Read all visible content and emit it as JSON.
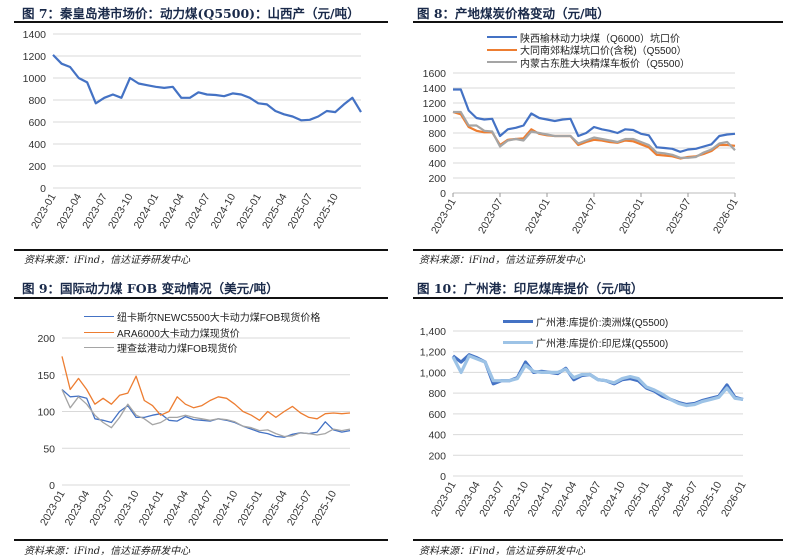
{
  "source_text": "资料来源：iFind，信达证券研发中心",
  "charts": [
    {
      "title": "图 7：秦皇岛港市场价：动力煤(Q5500)：山西产（元/吨）"
    },
    {
      "title": "图 8：产地煤炭价格变动（元/吨）"
    },
    {
      "title": "图 9：国际动力煤 FOB 变动情况（美元/吨）"
    },
    {
      "title": "图 10：广州港：印尼煤库提价（元/吨）"
    }
  ],
  "chart_data": [
    {
      "type": "line",
      "title": "图 7：秦皇岛港市场价：动力煤(Q5500)：山西产（元/吨）",
      "ylim": [
        0,
        1400
      ],
      "yticks": [
        "0",
        "200",
        "400",
        "600",
        "800",
        "1000",
        "1200",
        "1400"
      ],
      "xstart": "2023-01",
      "xticks": [
        "2023-01",
        "2023-04",
        "2023-07",
        "2023-10",
        "2024-01",
        "2024-04",
        "2024-07",
        "2024-10",
        "2025-01",
        "2025-04",
        "2025-07",
        "2025-10"
      ],
      "xtick_step_months": 3,
      "legend": "none",
      "series": [
        {
          "name": "秦皇岛港市场价：动力煤(Q5500)：山西产",
          "color": "#4472C4",
          "width": 2.2,
          "values": [
            1210,
            1130,
            1100,
            1000,
            960,
            770,
            820,
            850,
            820,
            1000,
            950,
            935,
            920,
            910,
            920,
            820,
            820,
            870,
            850,
            845,
            835,
            860,
            850,
            820,
            770,
            760,
            700,
            670,
            650,
            615,
            620,
            650,
            700,
            690,
            760,
            820,
            690
          ]
        }
      ]
    },
    {
      "type": "line",
      "title": "图 8：产地煤炭价格变动（元/吨）",
      "ylim": [
        0,
        1600
      ],
      "yticks": [
        "0",
        "200",
        "400",
        "600",
        "800",
        "1000",
        "1200",
        "1400",
        "1600"
      ],
      "xstart": "2023-01",
      "xticks": [
        "2023-01",
        "2023-07",
        "2024-01",
        "2024-07",
        "2025-01",
        "2025-07",
        "2026-01"
      ],
      "xtick_step_months": 6,
      "legend": "top",
      "series": [
        {
          "name": "陕西榆林动力块煤（Q6000）坑口价",
          "color": "#4472C4",
          "width": 2.2,
          "values": [
            1380,
            1380,
            1100,
            1000,
            980,
            990,
            760,
            850,
            870,
            900,
            1060,
            1000,
            980,
            960,
            980,
            990,
            760,
            800,
            880,
            850,
            830,
            800,
            850,
            840,
            790,
            770,
            610,
            600,
            590,
            550,
            580,
            590,
            620,
            650,
            760,
            780,
            790
          ]
        },
        {
          "name": "大同南郊粘煤坑口价(含税)（Q5500）",
          "color": "#ED7D31",
          "width": 2.2,
          "values": [
            1080,
            1050,
            880,
            830,
            810,
            810,
            640,
            710,
            720,
            730,
            850,
            790,
            770,
            760,
            760,
            760,
            640,
            680,
            710,
            700,
            680,
            670,
            700,
            690,
            650,
            610,
            510,
            500,
            490,
            460,
            480,
            490,
            520,
            560,
            640,
            640,
            630
          ]
        },
        {
          "name": "内蒙古东胜大块精煤车板价（Q5500）",
          "color": "#A5A5A5",
          "width": 2.2,
          "values": [
            1080,
            1080,
            900,
            900,
            830,
            820,
            620,
            700,
            720,
            700,
            820,
            800,
            780,
            760,
            760,
            760,
            660,
            700,
            740,
            720,
            700,
            680,
            720,
            720,
            680,
            640,
            540,
            530,
            510,
            470,
            470,
            480,
            540,
            580,
            660,
            680,
            570
          ]
        }
      ]
    },
    {
      "type": "line",
      "title": "图 9：国际动力煤 FOB 变动情况（美元/吨）",
      "ylim": [
        0,
        200
      ],
      "yticks": [
        "0",
        "50",
        "100",
        "150",
        "200"
      ],
      "xstart": "2023-01",
      "xticks": [
        "2023-01",
        "2023-04",
        "2023-07",
        "2023-10",
        "2024-01",
        "2024-04",
        "2024-07",
        "2024-10",
        "2025-01",
        "2025-04",
        "2025-07",
        "2025-10"
      ],
      "xtick_step_months": 3,
      "legend": "top",
      "series": [
        {
          "name": "纽卡斯尔NEWC5500大卡动力煤FOB现货价格",
          "color": "#4472C4",
          "width": 1.3,
          "values": [
            130,
            120,
            121,
            118,
            90,
            88,
            85,
            100,
            108,
            92,
            92,
            95,
            97,
            88,
            87,
            93,
            89,
            88,
            87,
            90,
            88,
            85,
            80,
            76,
            72,
            70,
            66,
            65,
            69,
            71,
            70,
            72,
            86,
            75,
            72,
            74
          ]
        },
        {
          "name": "ARA6000大卡动力煤现货价",
          "color": "#ED7D31",
          "width": 1.3,
          "values": [
            175,
            130,
            145,
            130,
            110,
            118,
            110,
            122,
            125,
            148,
            115,
            108,
            95,
            100,
            120,
            110,
            105,
            108,
            115,
            120,
            118,
            110,
            100,
            95,
            88,
            100,
            92,
            100,
            107,
            98,
            92,
            90,
            97,
            98,
            97,
            98
          ]
        },
        {
          "name": "理查兹港动力煤FOB现货价",
          "color": "#A5A5A5",
          "width": 1.3,
          "values": [
            130,
            105,
            120,
            110,
            95,
            85,
            78,
            92,
            110,
            95,
            90,
            82,
            85,
            92,
            92,
            95,
            92,
            90,
            88,
            90,
            89,
            86,
            80,
            78,
            74,
            75,
            70,
            66,
            67,
            71,
            70,
            68,
            70,
            76,
            74,
            76
          ]
        }
      ]
    },
    {
      "type": "line",
      "title": "图 10：广州港：印尼煤库提价（元/吨）",
      "ylim": [
        0,
        1400
      ],
      "yticks": [
        "0",
        "200",
        "400",
        "600",
        "800",
        "1,000",
        "1,200",
        "1,400"
      ],
      "xstart": "2023-01",
      "xticks": [
        "2023-01",
        "2023-04",
        "2023-07",
        "2023-10",
        "2024-01",
        "2024-04",
        "2024-07",
        "2024-10",
        "2025-01",
        "2025-04",
        "2025-07",
        "2025-10",
        "2026-01"
      ],
      "xtick_step_months": 3,
      "legend": "top",
      "series": [
        {
          "name": "广州港:库提价:澳洲煤(Q5500)",
          "color": "#4472C4",
          "width": 3.2,
          "values": [
            1160,
            1100,
            1170,
            1140,
            1100,
            890,
            920,
            920,
            950,
            1100,
            1000,
            1010,
            1000,
            990,
            1040,
            930,
            970,
            980,
            930,
            920,
            890,
            930,
            940,
            920,
            850,
            820,
            770,
            740,
            710,
            690,
            700,
            730,
            750,
            770,
            880,
            760,
            740
          ]
        },
        {
          "name": "广州港:库提价:印尼煤(Q5500)",
          "color": "#9DC3E6",
          "width": 3.2,
          "values": [
            1150,
            1000,
            1160,
            1130,
            1100,
            920,
            920,
            920,
            940,
            1070,
            1010,
            1000,
            1000,
            1000,
            1030,
            950,
            980,
            980,
            930,
            920,
            900,
            940,
            960,
            940,
            860,
            830,
            790,
            740,
            700,
            680,
            690,
            720,
            740,
            760,
            850,
            750,
            740
          ]
        }
      ]
    }
  ]
}
